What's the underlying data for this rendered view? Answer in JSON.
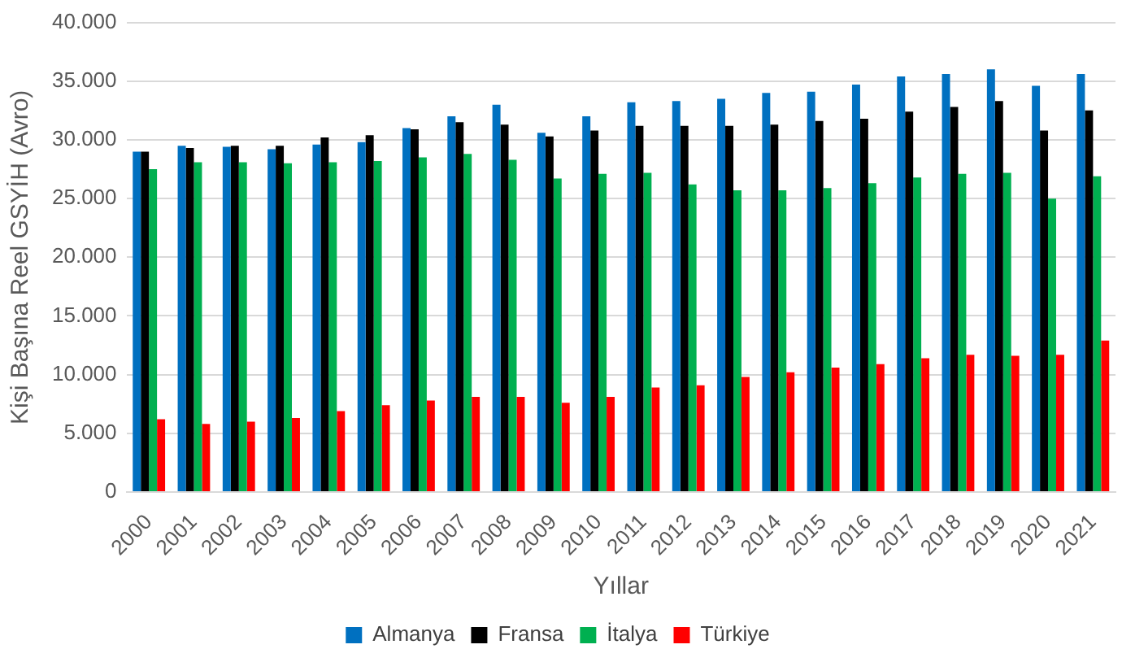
{
  "chart_data": {
    "type": "bar",
    "xlabel": "Yıllar",
    "ylabel": "Kişi Başına Reel GSYİH (Avro)",
    "categories": [
      "2000",
      "2001",
      "2002",
      "2003",
      "2004",
      "2005",
      "2006",
      "2007",
      "2008",
      "2009",
      "2010",
      "2011",
      "2012",
      "2013",
      "2014",
      "2015",
      "2016",
      "2017",
      "2018",
      "2019",
      "2020",
      "2021"
    ],
    "series": [
      {
        "name": "Almanya",
        "color": "#0070c0",
        "values": [
          29000,
          29500,
          29400,
          29200,
          29600,
          29800,
          31000,
          32000,
          33000,
          30600,
          32000,
          33200,
          33300,
          33500,
          34000,
          34100,
          34700,
          35400,
          35600,
          36000,
          34600,
          35600
        ]
      },
      {
        "name": "Fransa",
        "color": "#000000",
        "values": [
          29000,
          29300,
          29500,
          29500,
          30200,
          30400,
          30900,
          31500,
          31300,
          30300,
          30800,
          31200,
          31200,
          31200,
          31300,
          31600,
          31800,
          32400,
          32800,
          33300,
          30800,
          32500
        ]
      },
      {
        "name": "İtalya",
        "color": "#00b050",
        "values": [
          27500,
          28100,
          28100,
          28000,
          28100,
          28200,
          28500,
          28800,
          28300,
          26700,
          27100,
          27200,
          26200,
          25700,
          25700,
          25900,
          26300,
          26800,
          27100,
          27200,
          25000,
          26900
        ]
      },
      {
        "name": "Türkiye",
        "color": "#ff0000",
        "values": [
          6200,
          5800,
          6000,
          6300,
          6900,
          7400,
          7800,
          8100,
          8100,
          7600,
          8100,
          8900,
          9100,
          9800,
          10200,
          10600,
          10900,
          11400,
          11700,
          11600,
          11700,
          12900
        ]
      }
    ],
    "ylim": [
      0,
      40000
    ],
    "yticks": [
      0,
      {
        "value": 5000,
        "label": "5.000"
      },
      {
        "value": 10000,
        "label": "10.000"
      },
      {
        "value": 15000,
        "label": "15.000"
      },
      {
        "value": 20000,
        "label": "20.000"
      },
      {
        "value": 25000,
        "label": "25.000"
      },
      {
        "value": 30000,
        "label": "30.000"
      },
      {
        "value": 35000,
        "label": "35.000"
      },
      {
        "value": 40000,
        "label": "40.000"
      }
    ],
    "grid": "y",
    "legend": "bottom"
  }
}
